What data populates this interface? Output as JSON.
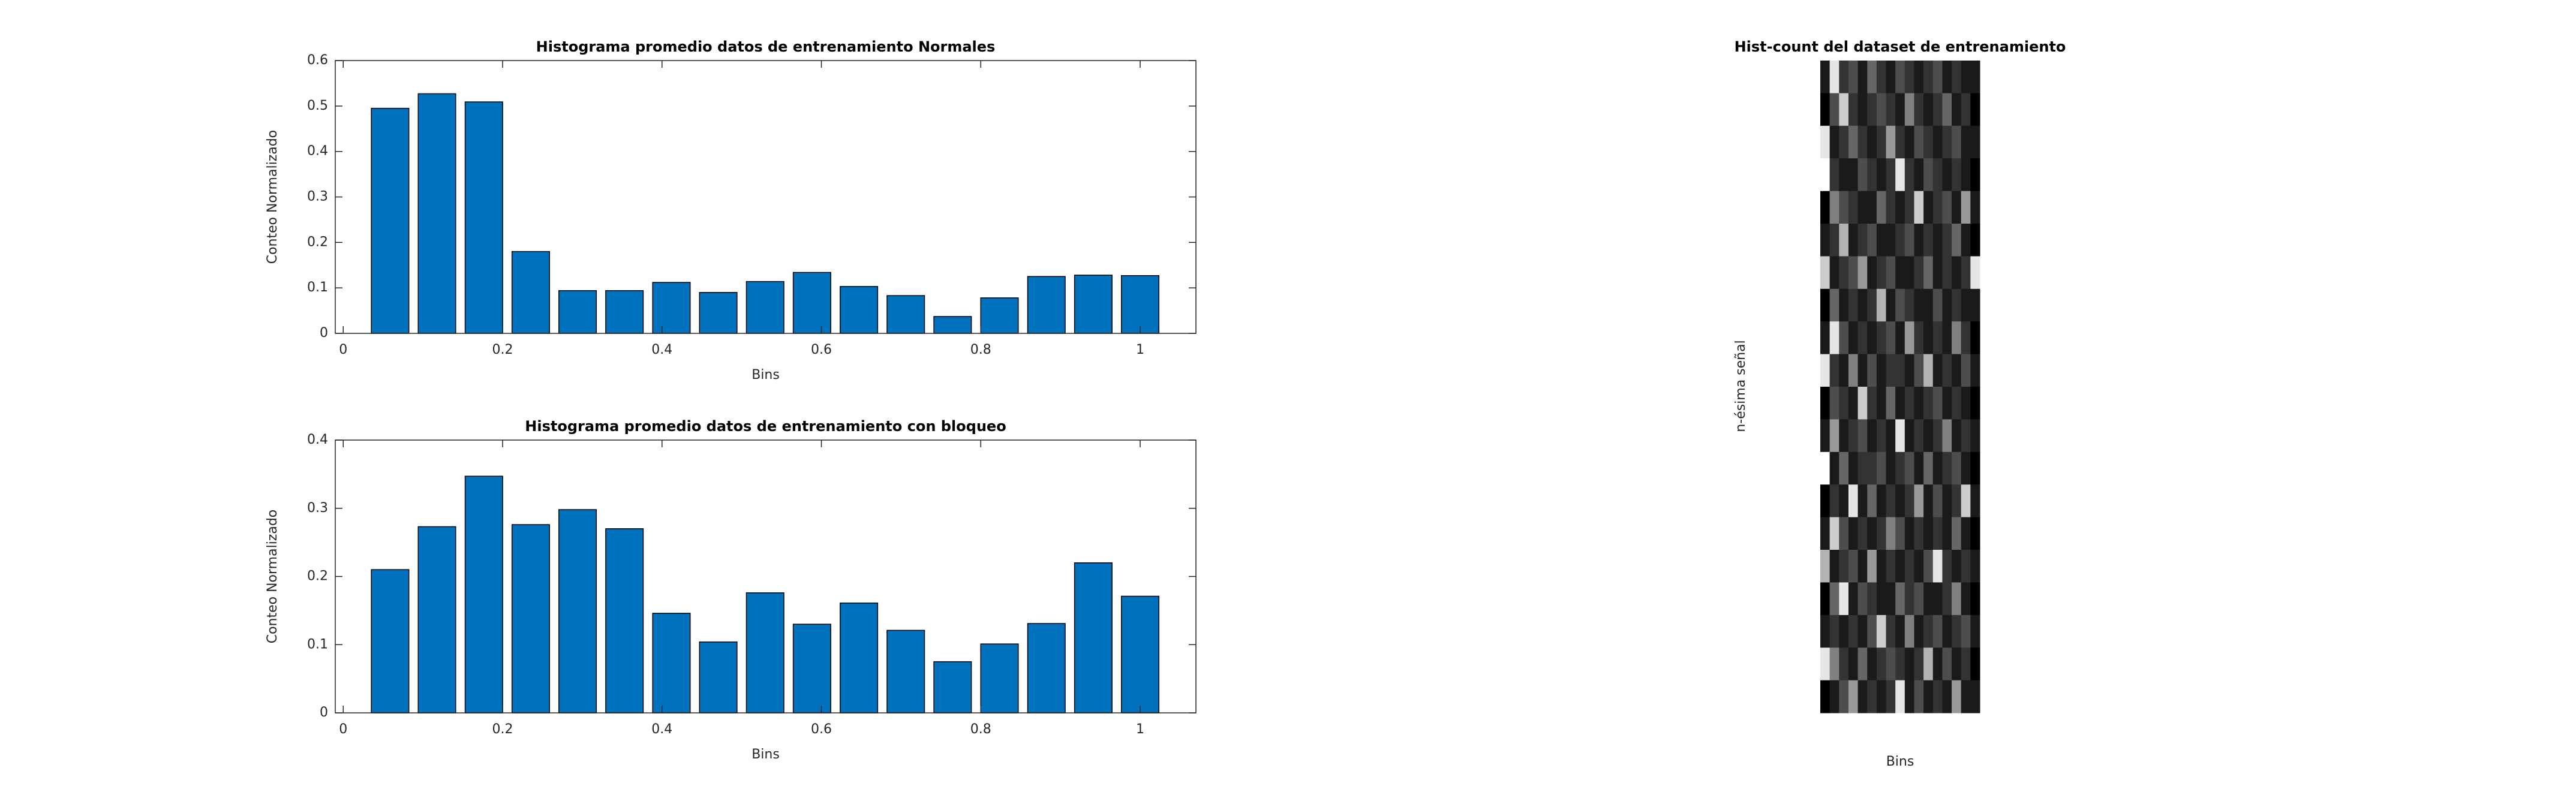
{
  "chart_data": [
    {
      "type": "bar",
      "title": "Histograma promedio datos de entrenamiento Normales",
      "xlabel": "Bins",
      "ylabel": "Conteo Normalizado",
      "color": "#0072bd",
      "x": [
        0.0588,
        0.1176,
        0.1765,
        0.2353,
        0.2941,
        0.3529,
        0.4118,
        0.4706,
        0.5294,
        0.5882,
        0.6471,
        0.7059,
        0.7647,
        0.8235,
        0.8824,
        0.9412,
        1.0
      ],
      "values": [
        0.495,
        0.527,
        0.509,
        0.18,
        0.094,
        0.094,
        0.112,
        0.09,
        0.114,
        0.134,
        0.103,
        0.083,
        0.037,
        0.078,
        0.125,
        0.128,
        0.127
      ],
      "xlim": [
        -0.01,
        1.07
      ],
      "xticks": [
        0,
        0.2,
        0.4,
        0.6,
        0.8,
        1
      ],
      "ylim": [
        0,
        0.6
      ],
      "yticks": [
        0,
        0.1,
        0.2,
        0.3,
        0.4,
        0.5,
        0.6
      ]
    },
    {
      "type": "bar",
      "title": "Histograma promedio datos de entrenamiento con bloqueo",
      "xlabel": "Bins",
      "ylabel": "Conteo Normalizado",
      "color": "#0072bd",
      "x": [
        0.0588,
        0.1176,
        0.1765,
        0.2353,
        0.2941,
        0.3529,
        0.4118,
        0.4706,
        0.5294,
        0.5882,
        0.6471,
        0.7059,
        0.7647,
        0.8235,
        0.8824,
        0.9412,
        1.0
      ],
      "values": [
        0.21,
        0.273,
        0.347,
        0.276,
        0.298,
        0.27,
        0.146,
        0.104,
        0.176,
        0.13,
        0.161,
        0.121,
        0.075,
        0.101,
        0.131,
        0.22,
        0.171
      ],
      "xlim": [
        -0.01,
        1.07
      ],
      "xticks": [
        0,
        0.2,
        0.4,
        0.6,
        0.8,
        1
      ],
      "ylim": [
        0,
        0.4
      ],
      "yticks": [
        0,
        0.1,
        0.2,
        0.3,
        0.4
      ]
    },
    {
      "type": "heatmap",
      "title": "Hist-count del dataset de entrenamiento",
      "xlabel": "Bins",
      "ylabel": "n-ésima señal",
      "z": [
        [
          0.1,
          0.9,
          0.2,
          0.3,
          0.1,
          0.4,
          0.2,
          0.1,
          0.3,
          0.2,
          0.1,
          0.2,
          0.3,
          0.1,
          0.2,
          0.1,
          0.1
        ],
        [
          0.0,
          0.3,
          0.8,
          0.2,
          0.1,
          0.2,
          0.3,
          0.2,
          0.1,
          0.5,
          0.2,
          0.1,
          0.2,
          0.4,
          0.1,
          0.2,
          0.0
        ],
        [
          0.9,
          0.1,
          0.2,
          0.4,
          0.2,
          0.1,
          0.2,
          0.6,
          0.2,
          0.1,
          0.3,
          0.2,
          0.1,
          0.2,
          0.3,
          0.1,
          0.1
        ],
        [
          1.0,
          0.2,
          0.1,
          0.1,
          0.3,
          0.2,
          0.1,
          0.2,
          0.9,
          0.2,
          0.1,
          0.3,
          0.2,
          0.1,
          0.2,
          0.1,
          0.0
        ],
        [
          0.0,
          0.5,
          0.3,
          0.2,
          0.1,
          0.1,
          0.4,
          0.2,
          0.1,
          0.2,
          0.8,
          0.1,
          0.2,
          0.3,
          0.1,
          0.6,
          0.1
        ],
        [
          0.1,
          0.2,
          0.7,
          0.1,
          0.2,
          0.3,
          0.1,
          0.1,
          0.2,
          0.3,
          0.1,
          0.2,
          0.1,
          0.2,
          0.4,
          0.1,
          0.0
        ],
        [
          0.8,
          0.1,
          0.2,
          0.3,
          0.6,
          0.1,
          0.2,
          0.3,
          0.1,
          0.1,
          0.2,
          0.4,
          0.1,
          0.2,
          0.1,
          0.2,
          0.9
        ],
        [
          0.0,
          0.4,
          0.1,
          0.2,
          0.1,
          0.2,
          0.7,
          0.1,
          0.3,
          0.2,
          0.1,
          0.1,
          0.3,
          0.1,
          0.2,
          0.1,
          0.1
        ],
        [
          0.1,
          0.9,
          0.3,
          0.1,
          0.2,
          0.1,
          0.2,
          0.3,
          0.1,
          0.6,
          0.2,
          0.1,
          0.2,
          0.1,
          0.5,
          0.2,
          0.0
        ],
        [
          0.9,
          0.2,
          0.1,
          0.5,
          0.1,
          0.3,
          0.1,
          0.2,
          0.2,
          0.1,
          0.3,
          0.7,
          0.1,
          0.2,
          0.1,
          0.3,
          0.1
        ],
        [
          0.0,
          0.3,
          0.2,
          0.1,
          0.8,
          0.2,
          0.1,
          0.4,
          0.1,
          0.2,
          0.1,
          0.2,
          0.3,
          0.1,
          0.2,
          0.1,
          0.0
        ],
        [
          0.1,
          0.6,
          0.1,
          0.2,
          0.3,
          0.1,
          0.2,
          0.1,
          0.9,
          0.1,
          0.2,
          0.1,
          0.2,
          0.5,
          0.1,
          0.2,
          0.1
        ],
        [
          1.0,
          0.1,
          0.4,
          0.1,
          0.2,
          0.2,
          0.3,
          0.1,
          0.2,
          0.3,
          0.1,
          0.4,
          0.1,
          0.2,
          0.3,
          0.1,
          0.0
        ],
        [
          0.0,
          0.2,
          0.1,
          0.9,
          0.1,
          0.4,
          0.1,
          0.2,
          0.1,
          0.2,
          0.6,
          0.1,
          0.3,
          0.1,
          0.2,
          0.8,
          0.1
        ],
        [
          0.1,
          0.8,
          0.3,
          0.1,
          0.2,
          0.1,
          0.2,
          0.5,
          0.3,
          0.1,
          0.2,
          0.1,
          0.2,
          0.1,
          0.4,
          0.1,
          0.0
        ],
        [
          0.7,
          0.1,
          0.2,
          0.3,
          0.1,
          0.6,
          0.1,
          0.2,
          0.1,
          0.2,
          0.1,
          0.3,
          0.9,
          0.2,
          0.1,
          0.2,
          0.1
        ],
        [
          0.0,
          0.4,
          0.9,
          0.1,
          0.3,
          0.2,
          0.1,
          0.1,
          0.4,
          0.2,
          0.3,
          0.1,
          0.1,
          0.2,
          0.5,
          0.1,
          0.0
        ],
        [
          0.1,
          0.2,
          0.1,
          0.2,
          0.1,
          0.3,
          0.8,
          0.2,
          0.1,
          0.5,
          0.1,
          0.2,
          0.3,
          0.1,
          0.2,
          0.3,
          0.1
        ],
        [
          0.9,
          0.5,
          0.2,
          0.1,
          0.4,
          0.1,
          0.2,
          0.3,
          0.2,
          0.1,
          0.2,
          0.7,
          0.1,
          0.3,
          0.1,
          0.2,
          0.0
        ],
        [
          0.0,
          0.1,
          0.3,
          0.6,
          0.1,
          0.2,
          0.1,
          0.2,
          0.9,
          0.1,
          0.3,
          0.1,
          0.2,
          0.1,
          0.6,
          0.1,
          0.1
        ]
      ]
    }
  ]
}
